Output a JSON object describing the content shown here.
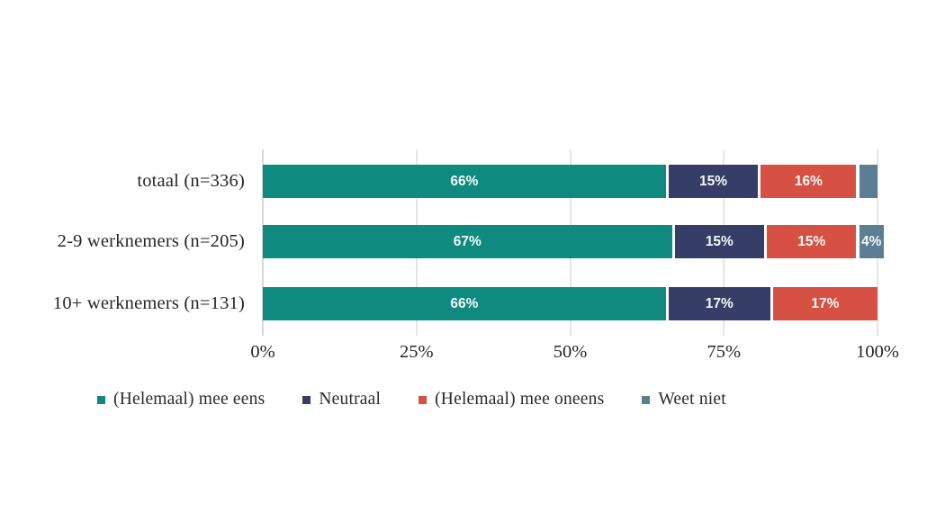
{
  "chart_data": {
    "type": "bar",
    "orientation": "horizontal-stacked",
    "title": "",
    "categories": [
      "totaal (n=336)",
      "2-9 werknemers (n=205)",
      "10+ werknemers (n=131)"
    ],
    "series": [
      {
        "name": "(Helemaal) mee eens",
        "color": "#0e8a7e",
        "values": [
          66,
          67,
          66
        ]
      },
      {
        "name": "Neutraal",
        "color": "#363d66",
        "values": [
          15,
          15,
          17
        ]
      },
      {
        "name": "(Helemaal) mee oneens",
        "color": "#d65144",
        "values": [
          16,
          15,
          17
        ]
      },
      {
        "name": "Weet niet",
        "color": "#5b7e95",
        "values": [
          3,
          4,
          0
        ]
      }
    ],
    "bar_labels": [
      [
        "66%",
        "15%",
        "16%",
        ""
      ],
      [
        "67%",
        "15%",
        "15%",
        "4%"
      ],
      [
        "66%",
        "17%",
        "17%",
        ""
      ]
    ],
    "x_ticks": [
      "0%",
      "25%",
      "50%",
      "75%",
      "100%"
    ],
    "x_tick_values": [
      0,
      25,
      50,
      75,
      100
    ],
    "xlim": [
      0,
      100
    ],
    "grid": true,
    "grid_color": "#e5e5e5",
    "axis_line_color": "#d8d8d8",
    "bar_value_label_color": "#f4f8f7",
    "text_color": "#262626",
    "background_color": "#ffffff",
    "legend_position": "bottom",
    "legend": [
      "(Helemaal) mee eens",
      "Neutraal",
      "(Helemaal) mee oneens",
      "Weet niet"
    ]
  }
}
